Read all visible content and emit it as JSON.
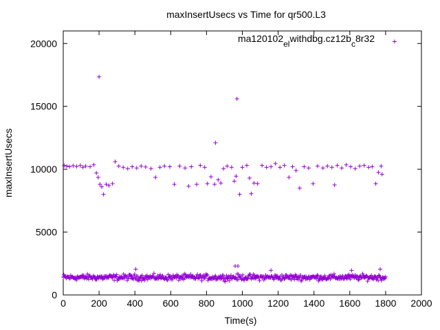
{
  "chart_data": {
    "type": "scatter",
    "title": "maxInsertUsecs vs Time for qr500.L3",
    "xlabel": "Time(s)",
    "ylabel": "maxInsertUsecs",
    "xlim": [
      0,
      2000
    ],
    "ylim": [
      0,
      21000
    ],
    "x_ticks": [
      "0",
      "200",
      "400",
      "600",
      "800",
      "1000",
      "1200",
      "1400",
      "1600",
      "1800",
      "2000"
    ],
    "y_ticks": [
      "0",
      "5000",
      "10000",
      "15000",
      "20000"
    ],
    "grid": false,
    "legend_position": "top-right",
    "series": [
      {
        "name": "ma120102_el_withdbg.cz12b_c8r32",
        "legend_parts": [
          "ma120102",
          "el",
          "withdbg.cz12b",
          "c",
          "8r32"
        ],
        "color": "#9400d3",
        "marker": "plus",
        "points": [
          [
            200,
            17350
          ],
          [
            970,
            15600
          ],
          [
            850,
            12100
          ],
          [
            5,
            10300
          ],
          [
            20,
            10250
          ],
          [
            35,
            10200
          ],
          [
            55,
            10280
          ],
          [
            75,
            10220
          ],
          [
            95,
            10300
          ],
          [
            110,
            10150
          ],
          [
            125,
            10250
          ],
          [
            150,
            10200
          ],
          [
            170,
            10350
          ],
          [
            185,
            9700
          ],
          [
            195,
            9350
          ],
          [
            205,
            8800
          ],
          [
            215,
            8600
          ],
          [
            225,
            8000
          ],
          [
            240,
            8800
          ],
          [
            255,
            8700
          ],
          [
            275,
            8850
          ],
          [
            290,
            10600
          ],
          [
            310,
            10250
          ],
          [
            335,
            10150
          ],
          [
            360,
            10050
          ],
          [
            385,
            10200
          ],
          [
            410,
            10100
          ],
          [
            435,
            10250
          ],
          [
            460,
            10180
          ],
          [
            490,
            10050
          ],
          [
            515,
            9350
          ],
          [
            540,
            10150
          ],
          [
            565,
            10250
          ],
          [
            595,
            10200
          ],
          [
            620,
            8800
          ],
          [
            650,
            10250
          ],
          [
            680,
            10100
          ],
          [
            700,
            8650
          ],
          [
            715,
            10200
          ],
          [
            745,
            8800
          ],
          [
            765,
            10300
          ],
          [
            790,
            10150
          ],
          [
            805,
            8850
          ],
          [
            825,
            9400
          ],
          [
            845,
            8800
          ],
          [
            865,
            9150
          ],
          [
            880,
            8900
          ],
          [
            895,
            10050
          ],
          [
            915,
            10250
          ],
          [
            940,
            10150
          ],
          [
            955,
            9050
          ],
          [
            965,
            9450
          ],
          [
            985,
            8000
          ],
          [
            1000,
            10150
          ],
          [
            1025,
            10300
          ],
          [
            1040,
            9300
          ],
          [
            1050,
            8050
          ],
          [
            1065,
            8900
          ],
          [
            1085,
            8850
          ],
          [
            1110,
            10300
          ],
          [
            1135,
            10150
          ],
          [
            1160,
            10200
          ],
          [
            1185,
            10450
          ],
          [
            1210,
            10150
          ],
          [
            1235,
            10300
          ],
          [
            1260,
            9350
          ],
          [
            1280,
            10200
          ],
          [
            1300,
            9900
          ],
          [
            1320,
            8500
          ],
          [
            1345,
            10200
          ],
          [
            1370,
            10100
          ],
          [
            1395,
            8850
          ],
          [
            1420,
            10250
          ],
          [
            1450,
            10100
          ],
          [
            1475,
            10250
          ],
          [
            1500,
            10150
          ],
          [
            1515,
            8750
          ],
          [
            1530,
            10300
          ],
          [
            1555,
            10100
          ],
          [
            1580,
            10350
          ],
          [
            1605,
            10200
          ],
          [
            1630,
            10050
          ],
          [
            1655,
            10250
          ],
          [
            1680,
            10300
          ],
          [
            1705,
            10150
          ],
          [
            1725,
            10200
          ],
          [
            1745,
            8850
          ],
          [
            1760,
            9750
          ],
          [
            1775,
            10250
          ],
          [
            1780,
            9600
          ],
          [
            960,
            2300
          ],
          [
            975,
            2300
          ],
          [
            405,
            2050
          ],
          [
            1160,
            1950
          ],
          [
            1610,
            1950
          ],
          [
            1770,
            2050
          ],
          [
            1850,
            20150
          ]
        ]
      }
    ],
    "dense_band": {
      "x_range": [
        0,
        1800
      ],
      "y_center": 1400,
      "y_spread": 350,
      "count": 520
    }
  }
}
